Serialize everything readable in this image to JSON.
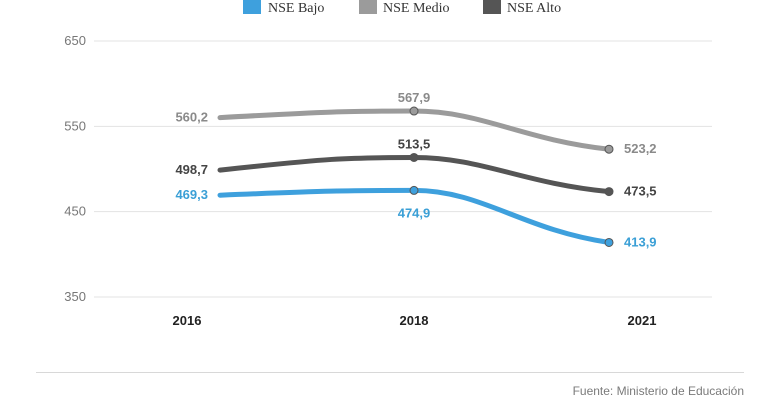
{
  "chart_data": {
    "type": "line",
    "categories": [
      "2016",
      "2018",
      "2021"
    ],
    "series": [
      {
        "name": "NSE Bajo",
        "color": "#3ea0dd",
        "values": [
          469.3,
          474.9,
          413.9
        ],
        "labels": [
          "469,3",
          "474,9",
          "413,9"
        ]
      },
      {
        "name": "NSE Medio",
        "color": "#9b9b9b",
        "values": [
          560.2,
          567.9,
          523.2
        ],
        "labels": [
          "560,2",
          "567,9",
          "523,2"
        ]
      },
      {
        "name": "NSE Alto",
        "color": "#555555",
        "values": [
          498.7,
          513.5,
          473.5
        ],
        "labels": [
          "498,7",
          "513,5",
          "473,5"
        ]
      }
    ],
    "yticks": [
      "650",
      "550",
      "450",
      "350"
    ],
    "ylim": [
      350,
      650
    ],
    "grid": true,
    "legend": "top"
  },
  "source": "Fuente: Ministerio de Educación"
}
